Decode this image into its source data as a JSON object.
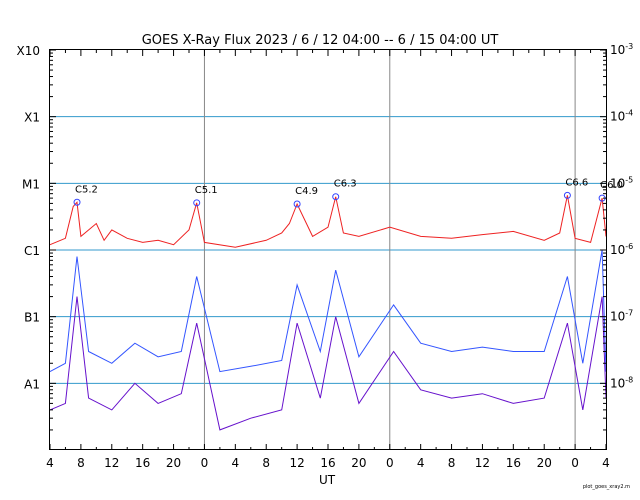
{
  "chart_data": {
    "type": "line",
    "title": "GOES X-Ray Flux   2023  /  6  /  12   04:00 --   6  /  15   04:00   UT",
    "xlabel": "UT",
    "x_start": "2023-06-12 04:00 UT",
    "x_end": "2023-06-15 04:00 UT",
    "x_tick_labels": [
      "4",
      "8",
      "12",
      "16",
      "20",
      "0",
      "4",
      "8",
      "12",
      "16",
      "20",
      "0",
      "4",
      "8",
      "12",
      "16",
      "20",
      "0",
      "4"
    ],
    "day_boundaries": [
      "2023-06-13 00:00",
      "2023-06-14 00:00",
      "2023-06-15 00:00"
    ],
    "y_scale": "log",
    "ylim": [
      1e-09,
      0.001
    ],
    "y_class_labels": [
      "X10",
      "X1",
      "M1",
      "C1",
      "B1",
      "A1"
    ],
    "y_right_labels": [
      "10^-3",
      "10^-4",
      "10^-5",
      "10^-6",
      "10^-7",
      "10^-8"
    ],
    "grid": true,
    "series": [
      {
        "color": "#ee2222",
        "x": [
          "2023-06-12 04:00",
          "2023-06-12 06:00",
          "2023-06-12 07:00",
          "2023-06-12 07:30",
          "2023-06-12 08:00",
          "2023-06-12 10:00",
          "2023-06-12 11:00",
          "2023-06-12 12:00",
          "2023-06-12 14:00",
          "2023-06-12 16:00",
          "2023-06-12 18:00",
          "2023-06-12 20:00",
          "2023-06-12 22:00",
          "2023-06-12 23:00",
          "2023-06-13 00:00",
          "2023-06-13 04:00",
          "2023-06-13 08:00",
          "2023-06-13 10:00",
          "2023-06-13 11:00",
          "2023-06-13 12:00",
          "2023-06-13 14:00",
          "2023-06-13 16:00",
          "2023-06-13 17:00",
          "2023-06-13 18:00",
          "2023-06-13 20:00",
          "2023-06-14 00:00",
          "2023-06-14 04:00",
          "2023-06-14 08:00",
          "2023-06-14 12:00",
          "2023-06-14 16:00",
          "2023-06-14 20:00",
          "2023-06-14 22:00",
          "2023-06-14 23:00",
          "2023-06-15 00:00",
          "2023-06-15 02:00",
          "2023-06-15 03:30",
          "2023-06-15 04:00"
        ],
        "y": [
          1.2e-06,
          1.5e-06,
          4.5e-06,
          5.2e-06,
          1.6e-06,
          2.5e-06,
          1.4e-06,
          2e-06,
          1.5e-06,
          1.3e-06,
          1.4e-06,
          1.2e-06,
          2e-06,
          5.1e-06,
          1.3e-06,
          1.1e-06,
          1.4e-06,
          1.8e-06,
          2.5e-06,
          4.9e-06,
          1.6e-06,
          2.2e-06,
          6.3e-06,
          1.8e-06,
          1.6e-06,
          2.2e-06,
          1.6e-06,
          1.5e-06,
          1.7e-06,
          1.9e-06,
          1.4e-06,
          1.8e-06,
          6.6e-06,
          1.5e-06,
          1.3e-06,
          6e-06,
          1.6e-06
        ]
      },
      {
        "color": "#3355ff",
        "x": [
          "2023-06-12 04:00",
          "2023-06-12 06:00",
          "2023-06-12 07:30",
          "2023-06-12 09:00",
          "2023-06-12 12:00",
          "2023-06-12 15:00",
          "2023-06-12 18:00",
          "2023-06-12 21:00",
          "2023-06-12 23:00",
          "2023-06-13 02:00",
          "2023-06-13 06:00",
          "2023-06-13 10:00",
          "2023-06-13 12:00",
          "2023-06-13 15:00",
          "2023-06-13 17:00",
          "2023-06-13 20:00",
          "2023-06-14 00:30",
          "2023-06-14 04:00",
          "2023-06-14 08:00",
          "2023-06-14 12:00",
          "2023-06-14 16:00",
          "2023-06-14 20:00",
          "2023-06-14 23:00",
          "2023-06-15 01:00",
          "2023-06-15 03:30",
          "2023-06-15 04:00"
        ],
        "y": [
          1.5e-08,
          2e-08,
          8e-07,
          3e-08,
          2e-08,
          4e-08,
          2.5e-08,
          3e-08,
          4e-07,
          1.5e-08,
          1.8e-08,
          2.2e-08,
          3e-07,
          3e-08,
          5e-07,
          2.5e-08,
          1.5e-07,
          4e-08,
          3e-08,
          3.5e-08,
          3e-08,
          3e-08,
          4e-07,
          2e-08,
          1e-06,
          1.5e-08
        ]
      },
      {
        "color": "#6611cc",
        "x": [
          "2023-06-12 04:00",
          "2023-06-12 06:00",
          "2023-06-12 07:30",
          "2023-06-12 09:00",
          "2023-06-12 12:00",
          "2023-06-12 15:00",
          "2023-06-12 18:00",
          "2023-06-12 21:00",
          "2023-06-12 23:00",
          "2023-06-13 02:00",
          "2023-06-13 06:00",
          "2023-06-13 10:00",
          "2023-06-13 12:00",
          "2023-06-13 15:00",
          "2023-06-13 17:00",
          "2023-06-13 20:00",
          "2023-06-14 00:30",
          "2023-06-14 04:00",
          "2023-06-14 08:00",
          "2023-06-14 12:00",
          "2023-06-14 16:00",
          "2023-06-14 20:00",
          "2023-06-14 23:00",
          "2023-06-15 01:00",
          "2023-06-15 03:30",
          "2023-06-15 04:00"
        ],
        "y": [
          4e-09,
          5e-09,
          2e-07,
          6e-09,
          4e-09,
          1e-08,
          5e-09,
          7e-09,
          8e-08,
          2e-09,
          3e-09,
          4e-09,
          8e-08,
          6e-09,
          1e-07,
          5e-09,
          3e-08,
          8e-09,
          6e-09,
          7e-09,
          5e-09,
          6e-09,
          8e-08,
          4e-09,
          2e-07,
          6e-09
        ]
      }
    ],
    "annotations": [
      {
        "label": "C5.2",
        "x": "2023-06-12 07:30",
        "y": 5.2e-06
      },
      {
        "label": "C5.1",
        "x": "2023-06-12 23:00",
        "y": 5.1e-06
      },
      {
        "label": "C4.9",
        "x": "2023-06-13 12:00",
        "y": 4.9e-06
      },
      {
        "label": "C6.3",
        "x": "2023-06-13 17:00",
        "y": 6.3e-06
      },
      {
        "label": "C6.6",
        "x": "2023-06-14 23:00",
        "y": 6.6e-06
      },
      {
        "label": "C6.0",
        "x": "2023-06-15 03:30",
        "y": 6e-06
      }
    ],
    "colors": {
      "grid_h": "#3399cc",
      "grid_v": "#888888",
      "marker": "#3344ff"
    }
  },
  "footer": "plot_goes_xray2.m"
}
